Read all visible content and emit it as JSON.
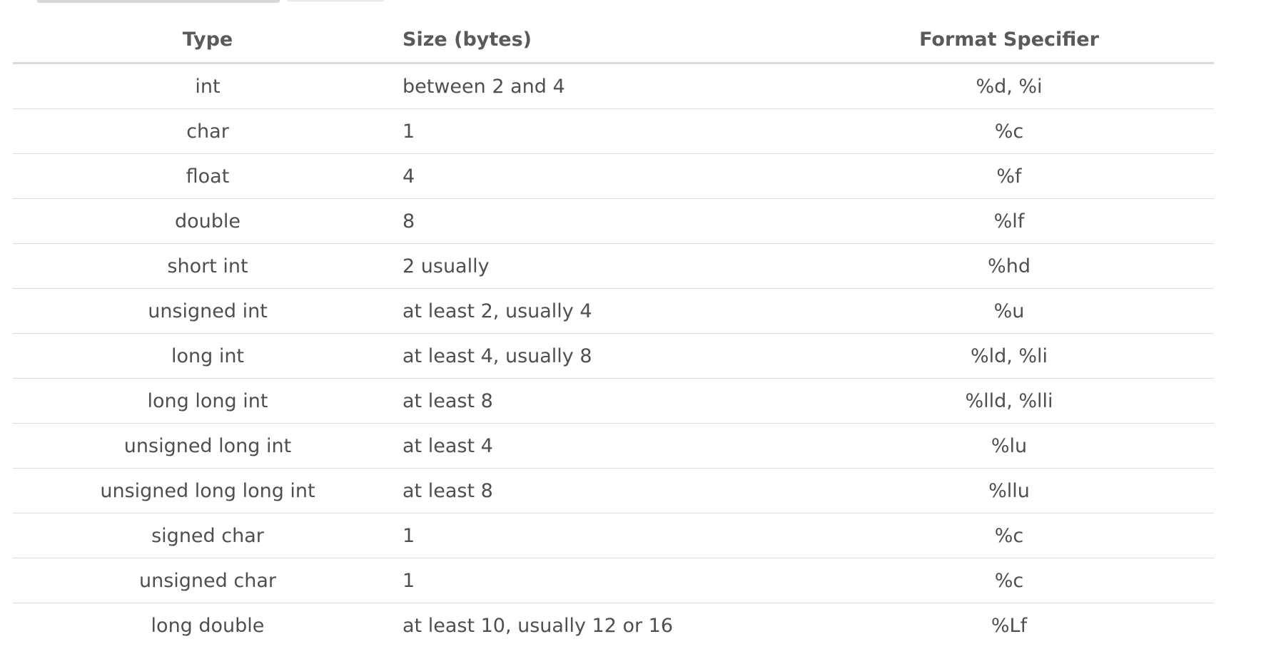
{
  "table": {
    "headers": {
      "type": "Type",
      "size": "Size (bytes)",
      "format": "Format Specifier"
    },
    "rows": [
      {
        "type": "int",
        "size": "between 2 and 4",
        "format": "%d, %i"
      },
      {
        "type": "char",
        "size": "1",
        "format": "%c"
      },
      {
        "type": "float",
        "size": "4",
        "format": "%f"
      },
      {
        "type": "double",
        "size": "8",
        "format": "%lf"
      },
      {
        "type": "short int",
        "size": "2 usually",
        "format": "%hd"
      },
      {
        "type": "unsigned int",
        "size": "at least 2, usually 4",
        "format": "%u"
      },
      {
        "type": "long int",
        "size": "at least 4, usually 8",
        "format": "%ld, %li"
      },
      {
        "type": "long long int",
        "size": "at least 8",
        "format": "%lld, %lli"
      },
      {
        "type": "unsigned long int",
        "size": "at least 4",
        "format": "%lu"
      },
      {
        "type": "unsigned long long int",
        "size": "at least 8",
        "format": "%llu"
      },
      {
        "type": "signed char",
        "size": "1",
        "format": "%c"
      },
      {
        "type": "unsigned char",
        "size": "1",
        "format": "%c"
      },
      {
        "type": "long double",
        "size": "at least 10, usually 12 or 16",
        "format": "%Lf"
      }
    ]
  }
}
